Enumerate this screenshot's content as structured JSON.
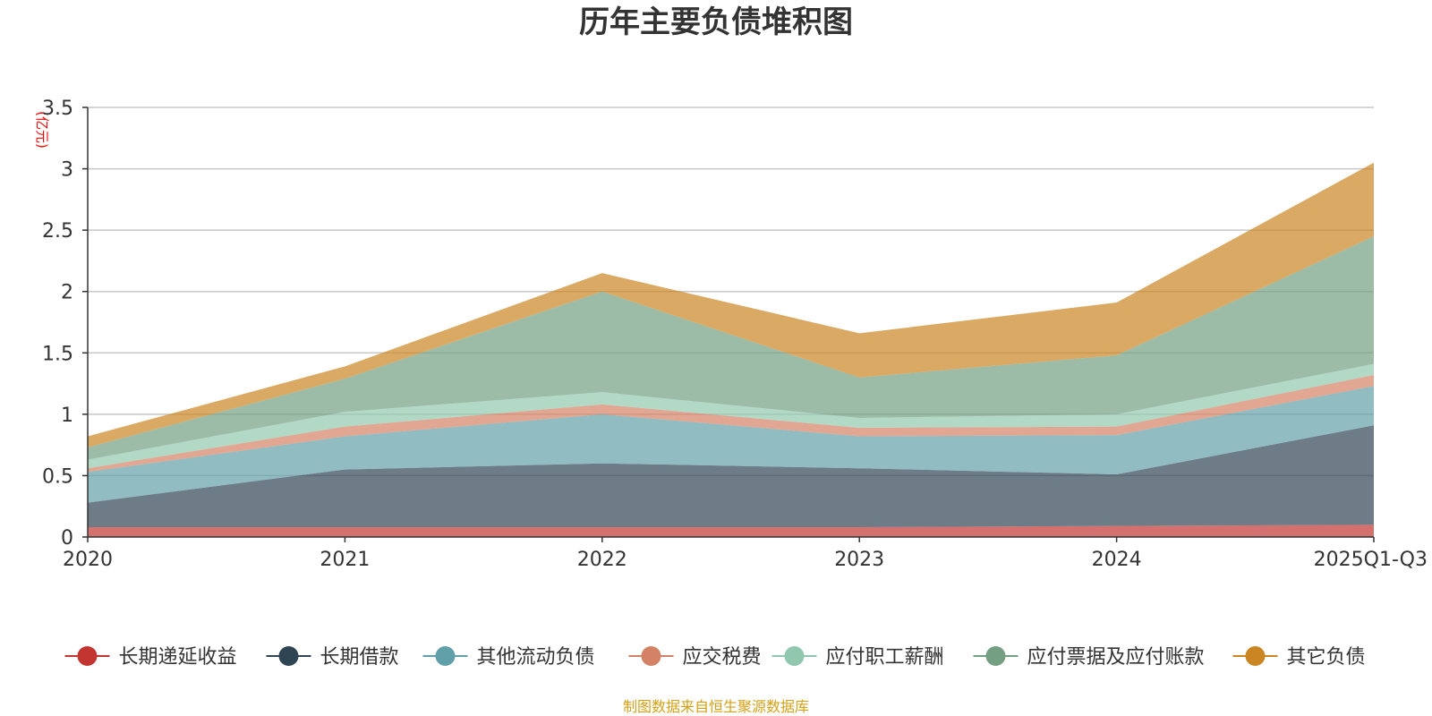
{
  "chart_data": {
    "type": "area",
    "stacked": true,
    "title": "历年主要负债堆积图",
    "ylabel": "(亿元)",
    "ylim": [
      0,
      3.5
    ],
    "yticks": [
      "0",
      "0.5",
      "1",
      "1.5",
      "2",
      "2.5",
      "3",
      "3.5"
    ],
    "ytick_values": [
      0,
      0.5,
      1,
      1.5,
      2,
      2.5,
      3,
      3.5
    ],
    "categories": [
      "2020",
      "2021",
      "2022",
      "2023",
      "2024",
      "2025Q1-Q3"
    ],
    "grid": true,
    "legend_position": "bottom",
    "series": [
      {
        "name": "长期递延收益",
        "color": "#c23531",
        "values": [
          0.08,
          0.08,
          0.08,
          0.08,
          0.09,
          0.1
        ]
      },
      {
        "name": "长期借款",
        "color": "#2f4554",
        "values": [
          0.2,
          0.47,
          0.52,
          0.48,
          0.42,
          0.81
        ]
      },
      {
        "name": "其他流动负债",
        "color": "#61a0a8",
        "values": [
          0.25,
          0.27,
          0.4,
          0.26,
          0.32,
          0.32
        ]
      },
      {
        "name": "应交税费",
        "color": "#d48265",
        "values": [
          0.03,
          0.08,
          0.08,
          0.07,
          0.07,
          0.09
        ]
      },
      {
        "name": "应付职工薪酬",
        "color": "#91c7ae",
        "values": [
          0.07,
          0.12,
          0.1,
          0.08,
          0.1,
          0.09
        ]
      },
      {
        "name": "应付票据及应付账款",
        "color": "#749f83",
        "values": [
          0.1,
          0.27,
          0.82,
          0.33,
          0.48,
          1.04
        ]
      },
      {
        "name": "其它负债",
        "color": "#ca8622",
        "values": [
          0.09,
          0.1,
          0.15,
          0.36,
          0.43,
          0.6
        ]
      }
    ]
  },
  "footer": {
    "source": "制图数据来自恒生聚源数据库"
  }
}
